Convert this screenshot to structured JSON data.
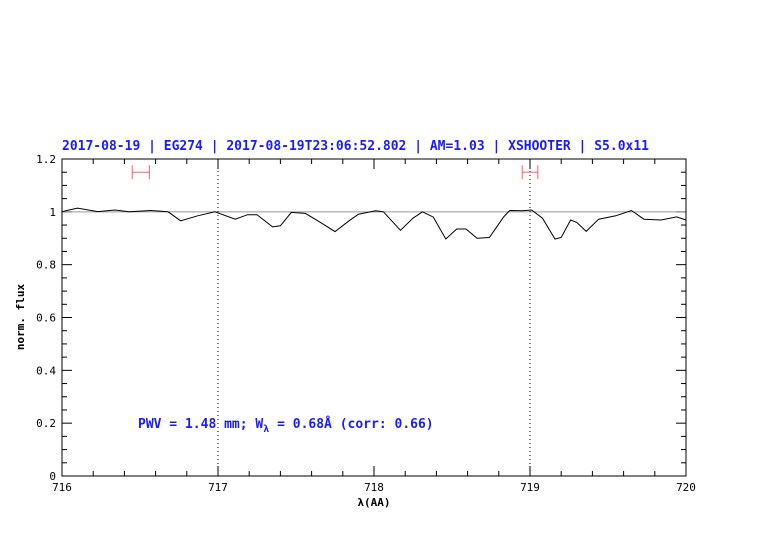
{
  "chart_data": {
    "type": "line",
    "title": "2017-08-19 | EG274 | 2017-08-19T23:06:52.802 | AM=1.03 | XSHOOTER | S5.0x11",
    "xlabel": "λ(AA)",
    "ylabel": "norm. flux",
    "xlim": [
      716,
      720
    ],
    "ylim": [
      0,
      1.2
    ],
    "xticks": [
      "716",
      "717",
      "718",
      "719",
      "720"
    ],
    "yticks": [
      "0",
      "0.2",
      "0.4",
      "0.6",
      "0.8",
      "1",
      "1.2"
    ],
    "grid": false,
    "reference_line_y": 1,
    "vertical_markers_x": [
      717,
      719
    ],
    "error_bars": [
      {
        "x": [
          716.45,
          716.56
        ],
        "y": 1.15
      },
      {
        "x": [
          718.95,
          719.05
        ],
        "y": 1.15
      }
    ],
    "annotation": {
      "prefix": "PWV = 1.48 mm; W",
      "subscript": "λ",
      "suffix": " = 0.68Å (corr: 0.66)"
    },
    "series": [
      {
        "x": [
          716.0,
          716.03,
          716.1,
          716.23,
          716.34,
          716.43,
          716.57,
          716.68,
          716.76,
          716.87,
          716.98,
          717.11,
          717.19,
          717.25,
          717.35,
          717.4,
          717.47,
          717.56,
          717.64,
          717.75,
          717.84,
          717.9,
          718.01,
          718.06,
          718.17,
          718.25,
          718.31,
          718.38,
          718.46,
          718.53,
          718.59,
          718.66,
          718.74,
          718.83,
          718.87,
          718.95,
          719.01,
          719.08,
          719.16,
          719.2,
          719.26,
          719.3,
          719.36,
          719.44,
          719.55,
          719.65,
          719.73,
          719.84,
          719.94,
          720.0
        ],
        "y": [
          1.0,
          1.005,
          1.014,
          1.001,
          1.007,
          1.0,
          1.005,
          1.0,
          0.966,
          0.985,
          1.0,
          0.972,
          0.989,
          0.989,
          0.943,
          0.947,
          0.998,
          0.994,
          0.966,
          0.925,
          0.966,
          0.991,
          1.004,
          1.0,
          0.93,
          0.976,
          1.0,
          0.98,
          0.897,
          0.935,
          0.935,
          0.9,
          0.903,
          0.98,
          1.005,
          1.004,
          1.007,
          0.976,
          0.897,
          0.903,
          0.969,
          0.96,
          0.926,
          0.972,
          0.985,
          1.005,
          0.972,
          0.969,
          0.981,
          0.969
        ]
      }
    ],
    "colors": {
      "line": "#000000",
      "reference": "#d87070",
      "error_bar": "#ff6060",
      "text": "#1a1aff"
    }
  }
}
